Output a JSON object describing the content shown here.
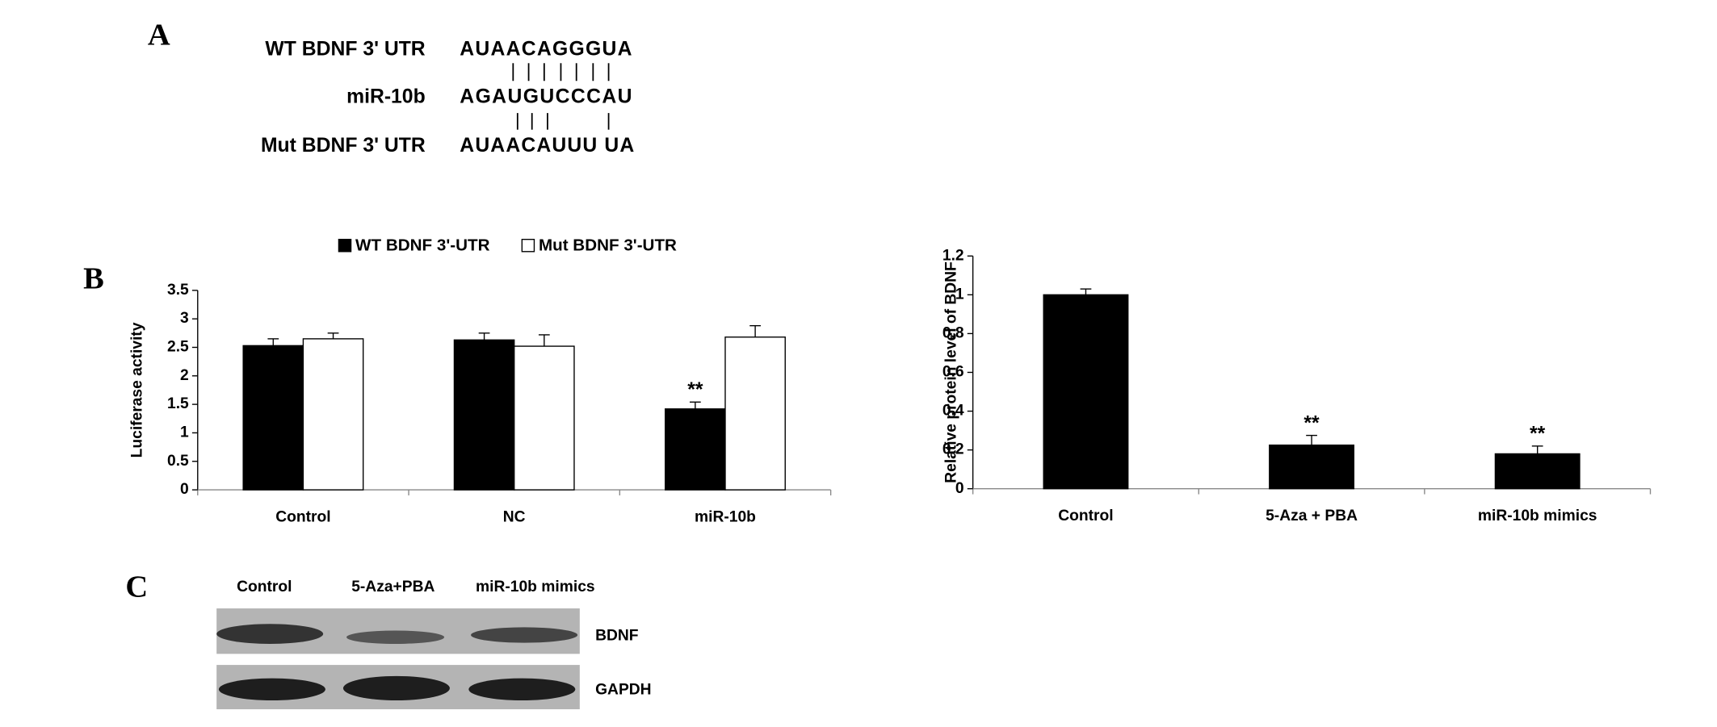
{
  "panel_labels": [
    "A",
    "B",
    "C"
  ],
  "sequence_alignment": {
    "rows": [
      {
        "label": "WT BDNF 3' UTR",
        "sequence": "AUAACAGGGUA"
      },
      {
        "label": "miR-10b",
        "sequence": "AGAUGUCCCAU"
      },
      {
        "label": "Mut BDNF 3' UTR",
        "sequence": "AUAACAUUU UA"
      }
    ]
  },
  "chart_data": [
    {
      "type": "bar",
      "ylabel": "Luciferase activity",
      "categories": [
        "Control",
        "NC",
        "miR-10b"
      ],
      "series": [
        {
          "name": "WT BDNF 3'-UTR",
          "color": "#000000",
          "values": [
            2.53,
            2.63,
            1.42
          ],
          "errors": [
            0.12,
            0.12,
            0.12
          ],
          "significance": [
            null,
            null,
            "**"
          ]
        },
        {
          "name": "Mut BDNF 3'-UTR",
          "color": "#ffffff",
          "values": [
            2.65,
            2.52,
            2.68
          ],
          "errors": [
            0.1,
            0.2,
            0.2
          ]
        }
      ],
      "ylim": [
        0,
        3.5
      ],
      "yticks": [
        0,
        0.5,
        1,
        1.5,
        2,
        2.5,
        3,
        3.5
      ],
      "legend": "top"
    },
    {
      "type": "bar",
      "ylabel": "Relative protein level of BDNF",
      "categories": [
        "Control",
        "5-Aza + PBA",
        "miR-10b mimics"
      ],
      "series": [
        {
          "color": "#000000",
          "values": [
            1.0,
            0.225,
            0.18
          ],
          "errors": [
            0.03,
            0.05,
            0.04
          ],
          "significance": [
            null,
            "**",
            "**"
          ]
        }
      ],
      "ylim": [
        0,
        1.2
      ],
      "yticks": [
        0,
        0.2,
        0.4,
        0.6,
        0.8,
        1,
        1.2
      ]
    }
  ],
  "western_blot": {
    "lanes": [
      "Control",
      "5-Aza+PBA",
      "miR-10b mimics"
    ],
    "bands": [
      "BDNF",
      "GAPDH"
    ]
  }
}
